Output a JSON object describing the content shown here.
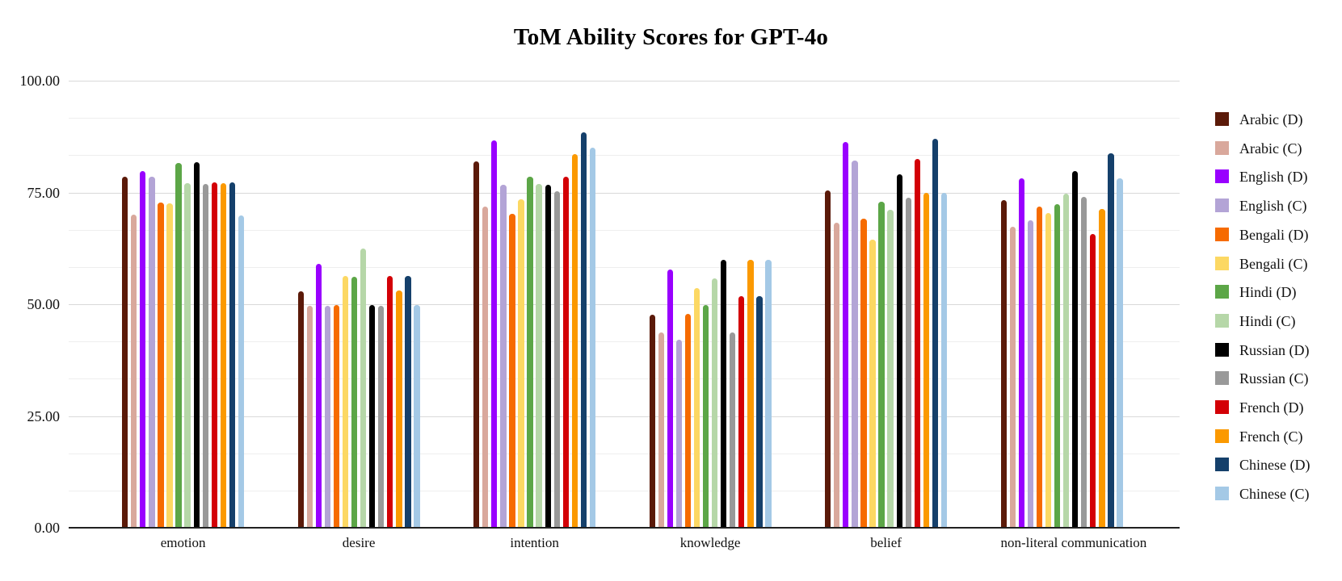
{
  "title": "ToM Ability Scores for GPT-4o",
  "chart_data": {
    "type": "bar",
    "title": "ToM Ability Scores for GPT-4o",
    "categories": [
      "emotion",
      "desire",
      "intention",
      "knowledge",
      "belief",
      "non-literal communication"
    ],
    "series": [
      {
        "name": "Arabic (D)",
        "color": "#5b1a09",
        "values": [
          78.5,
          52.9,
          81.9,
          47.7,
          75.5,
          73.2
        ]
      },
      {
        "name": "Arabic (C)",
        "color": "#d9a89c",
        "values": [
          70.0,
          49.7,
          71.9,
          43.7,
          68.2,
          67.3
        ]
      },
      {
        "name": "English (D)",
        "color": "#9900ff",
        "values": [
          79.8,
          59.1,
          86.6,
          57.7,
          86.2,
          78.1
        ]
      },
      {
        "name": "English (C)",
        "color": "#b3a4d6",
        "values": [
          78.5,
          49.6,
          76.8,
          42.1,
          82.1,
          68.8
        ]
      },
      {
        "name": "Bengali (D)",
        "color": "#f66b00",
        "values": [
          72.8,
          49.8,
          70.3,
          47.9,
          69.2,
          71.9
        ]
      },
      {
        "name": "Bengali (C)",
        "color": "#fcd863",
        "values": [
          72.6,
          56.3,
          73.4,
          53.6,
          64.5,
          70.4
        ]
      },
      {
        "name": "Hindi (D)",
        "color": "#5ca647",
        "values": [
          81.5,
          56.2,
          78.5,
          49.8,
          73.0,
          72.4
        ]
      },
      {
        "name": "Hindi (C)",
        "color": "#b6d7a8",
        "values": [
          77.0,
          62.4,
          76.9,
          55.8,
          71.1,
          74.8
        ]
      },
      {
        "name": "Russian (D)",
        "color": "#000000",
        "values": [
          81.7,
          49.8,
          76.8,
          59.9,
          79.1,
          79.7
        ]
      },
      {
        "name": "Russian (C)",
        "color": "#999999",
        "values": [
          76.9,
          49.6,
          75.2,
          43.7,
          73.8,
          74.0
        ]
      },
      {
        "name": "French (D)",
        "color": "#d30006",
        "values": [
          77.2,
          56.4,
          78.5,
          51.8,
          82.5,
          65.7
        ]
      },
      {
        "name": "French (C)",
        "color": "#fb9900",
        "values": [
          77.1,
          53.0,
          83.5,
          60.0,
          74.9,
          71.3
        ]
      },
      {
        "name": "Chinese (D)",
        "color": "#15406b",
        "values": [
          77.3,
          56.3,
          88.5,
          51.8,
          87.0,
          83.7
        ]
      },
      {
        "name": "Chinese (C)",
        "color": "#a4c9e6",
        "values": [
          69.9,
          49.8,
          85.1,
          60.0,
          74.9,
          78.2
        ]
      }
    ],
    "ylim": [
      0,
      100
    ],
    "y_ticks": [
      {
        "value": 0,
        "label": "0.00"
      },
      {
        "value": 25,
        "label": "25.00"
      },
      {
        "value": 50,
        "label": "50.00"
      },
      {
        "value": 75,
        "label": "75.00"
      },
      {
        "value": 100,
        "label": "100.00"
      }
    ],
    "grid": {
      "major_every": 25,
      "minor_divisions_per_major": 3,
      "grid_on": true
    },
    "legend_position": "right"
  },
  "colors": {
    "background": "#ffffff",
    "baseline": "#212121",
    "major_grid": "#d9d9d9",
    "minor_grid": "#eeeeee",
    "text": "#000000"
  }
}
